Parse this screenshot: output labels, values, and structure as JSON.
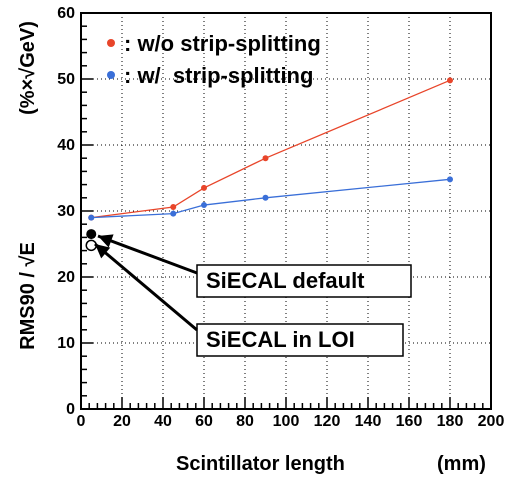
{
  "chart_data": {
    "type": "line",
    "xlabel": "Scintillator length",
    "xlabel_unit": "(mm)",
    "ylabel_main": "RMS90 / √E",
    "ylabel_unit": "(%×√GeV)",
    "xlim": [
      0,
      200
    ],
    "ylim": [
      0,
      60
    ],
    "x_ticks": [
      0,
      20,
      40,
      60,
      80,
      100,
      120,
      140,
      160,
      180,
      200
    ],
    "y_ticks": [
      0,
      10,
      20,
      30,
      40,
      50,
      60
    ],
    "grid": true,
    "legend_placement": "top-left",
    "series": [
      {
        "name": ": w/o strip-splitting",
        "color": "#e8452a",
        "x": [
          5,
          45,
          60,
          90,
          180
        ],
        "y": [
          29.0,
          30.6,
          33.5,
          38.0,
          49.8
        ]
      },
      {
        "name": ": w/  strip-splitting",
        "color": "#3a6fd8",
        "x": [
          5,
          45,
          60,
          90,
          180
        ],
        "y": [
          29.0,
          29.6,
          30.9,
          32.0,
          34.8
        ]
      }
    ],
    "reference_points": [
      {
        "label": "SiECAL default",
        "x": 5,
        "y": 26.2,
        "marker": "filled",
        "color": "#000000"
      },
      {
        "label": "SiECAL in LOI",
        "x": 5,
        "y": 25.4,
        "marker": "open",
        "color": "#000000"
      }
    ]
  }
}
